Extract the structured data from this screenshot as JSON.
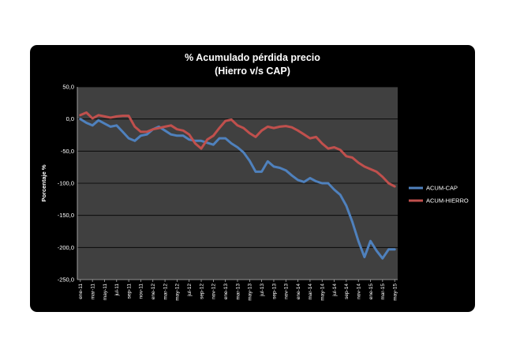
{
  "chart_data": {
    "type": "line",
    "title": "% Acumulado pérdida precio",
    "subtitle": "(Hierro v/s CAP)",
    "ylabel": "Porcentaje %",
    "xlabel": "",
    "ylim": [
      -250,
      50
    ],
    "yticks": [
      "50,0",
      "0,0",
      "-50,0",
      "-100,0",
      "-150,0",
      "-200,0",
      "-250,0"
    ],
    "ytick_values": [
      50,
      0,
      -50,
      -100,
      -150,
      -200,
      -250
    ],
    "grid": true,
    "legend_position": "right",
    "categories": [
      "ene-11",
      "feb-11",
      "mar-11",
      "abr-11",
      "may-11",
      "jun-11",
      "jul-11",
      "ago-11",
      "sep-11",
      "oct-11",
      "nov-11",
      "dic-11",
      "ene-12",
      "feb-12",
      "mar-12",
      "abr-12",
      "may-12",
      "jun-12",
      "jul-12",
      "ago-12",
      "sep-12",
      "oct-12",
      "nov-12",
      "dic-12",
      "ene-13",
      "feb-13",
      "mar-13",
      "abr-13",
      "may-13",
      "jun-13",
      "jul-13",
      "ago-13",
      "sep-13",
      "oct-13",
      "nov-13",
      "dic-13",
      "ene-14",
      "feb-14",
      "mar-14",
      "abr-14",
      "may-14",
      "jun-14",
      "jul-14",
      "ago-14",
      "sep-14",
      "oct-14",
      "nov-14",
      "dic-14",
      "ene-15",
      "feb-15",
      "mar-15",
      "abr-15",
      "may-15"
    ],
    "tick_labels": [
      "ene-11",
      "mar-11",
      "may-11",
      "jul-11",
      "sep-11",
      "nov-11",
      "ene-12",
      "mar-12",
      "may-12",
      "jul-12",
      "sep-12",
      "nov-12",
      "ene-13",
      "mar-13",
      "may-13",
      "jul-13",
      "sep-13",
      "nov-13",
      "ene-14",
      "mar-14",
      "may-14",
      "jul-14",
      "sep-14",
      "nov-14",
      "ene-15",
      "mar-15",
      "may-15"
    ],
    "series": [
      {
        "name": "ACUM-CAP",
        "color": "#4f81bd",
        "values": [
          0,
          -6,
          -10,
          -2,
          -7,
          -12,
          -10,
          -20,
          -30,
          -34,
          -26,
          -24,
          -16,
          -12,
          -18,
          -24,
          -26,
          -26,
          -32,
          -34,
          -34,
          -37,
          -40,
          -30,
          -30,
          -38,
          -44,
          -52,
          -65,
          -82,
          -82,
          -66,
          -74,
          -76,
          -80,
          -88,
          -95,
          -98,
          -92,
          -97,
          -100,
          -100,
          -110,
          -118,
          -135,
          -160,
          -190,
          -215,
          -190,
          -205,
          -217,
          -203,
          -203
        ]
      },
      {
        "name": "ACUM-HIERRO",
        "color": "#c0504d",
        "values": [
          6,
          10,
          1,
          6,
          4,
          2,
          4,
          5,
          5,
          -12,
          -20,
          -20,
          -16,
          -14,
          -12,
          -10,
          -16,
          -18,
          -24,
          -38,
          -46,
          -32,
          -26,
          -14,
          -3,
          -1,
          -10,
          -14,
          -22,
          -28,
          -18,
          -12,
          -14,
          -12,
          -11,
          -13,
          -18,
          -24,
          -30,
          -28,
          -38,
          -46,
          -44,
          -48,
          -58,
          -60,
          -68,
          -74,
          -78,
          -82,
          -90,
          -100,
          -105
        ]
      }
    ]
  }
}
